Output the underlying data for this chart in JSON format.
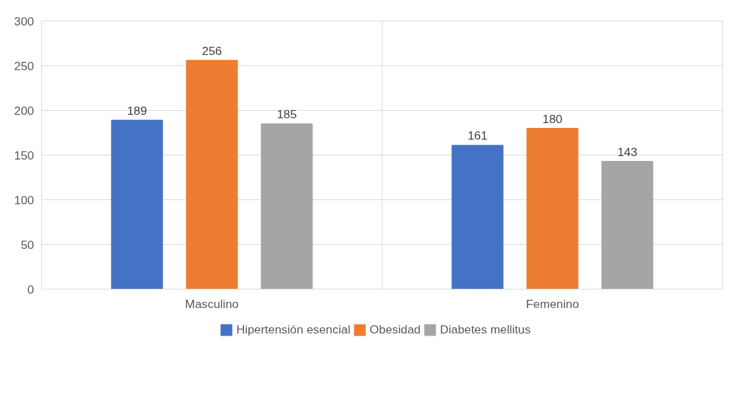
{
  "chart_data": {
    "type": "bar",
    "categories": [
      "Masculino",
      "Femenino"
    ],
    "series": [
      {
        "name": "Hipertensión esencial",
        "color": "#4472c4",
        "values": [
          189,
          161
        ]
      },
      {
        "name": "Obesidad",
        "color": "#ed7d31",
        "values": [
          256,
          180
        ]
      },
      {
        "name": "Diabetes mellitus",
        "color": "#a5a5a5",
        "values": [
          185,
          143
        ]
      }
    ],
    "ylim": [
      0,
      300
    ],
    "yticks": [
      0,
      50,
      100,
      150,
      200,
      250,
      300
    ],
    "grid": true,
    "legend": "bottom",
    "data_labels": true
  }
}
